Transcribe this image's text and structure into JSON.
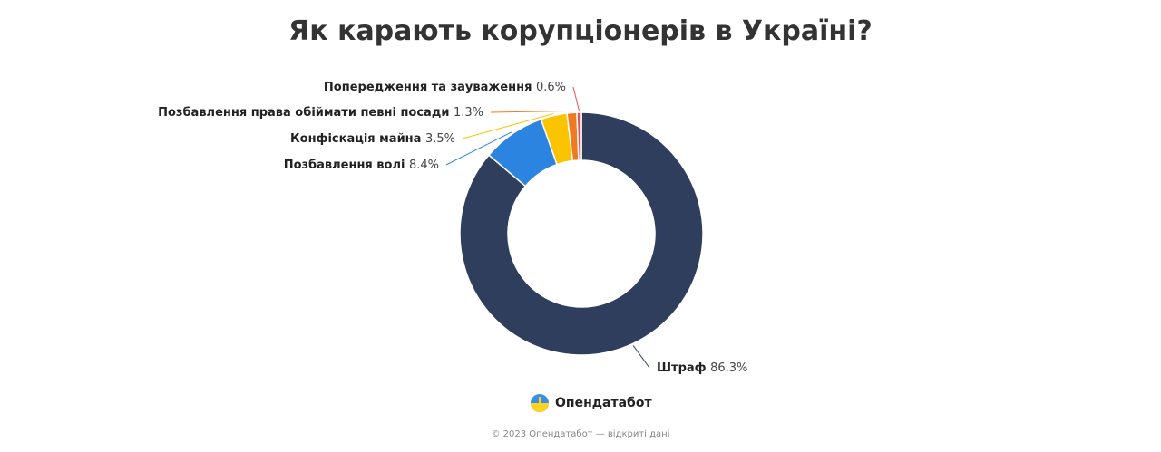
{
  "title": "Як карають корупціонерів в Україні?",
  "chart_data": {
    "type": "pie",
    "donut": true,
    "title": "Як карають корупціонерів в Україні?",
    "slices": [
      {
        "label": "Штраф",
        "value": 86.3,
        "value_label": "86.3%",
        "color": "#2e3e5c"
      },
      {
        "label": "Позбавлення волі",
        "value": 8.4,
        "value_label": "8.4%",
        "color": "#2b84e0"
      },
      {
        "label": "Конфіскація майна",
        "value": 3.5,
        "value_label": "3.5%",
        "color": "#fbc400"
      },
      {
        "label": "Позбавлення права обіймати певні посади",
        "value": 1.3,
        "value_label": "1.3%",
        "color": "#f07a22"
      },
      {
        "label": "Попередження та зауваження",
        "value": 0.6,
        "value_label": "0.6%",
        "color": "#ea5252"
      }
    ]
  },
  "brand": {
    "name": "Опендатабот"
  },
  "footer": "© 2023 Опендатабот — відкриті дані"
}
